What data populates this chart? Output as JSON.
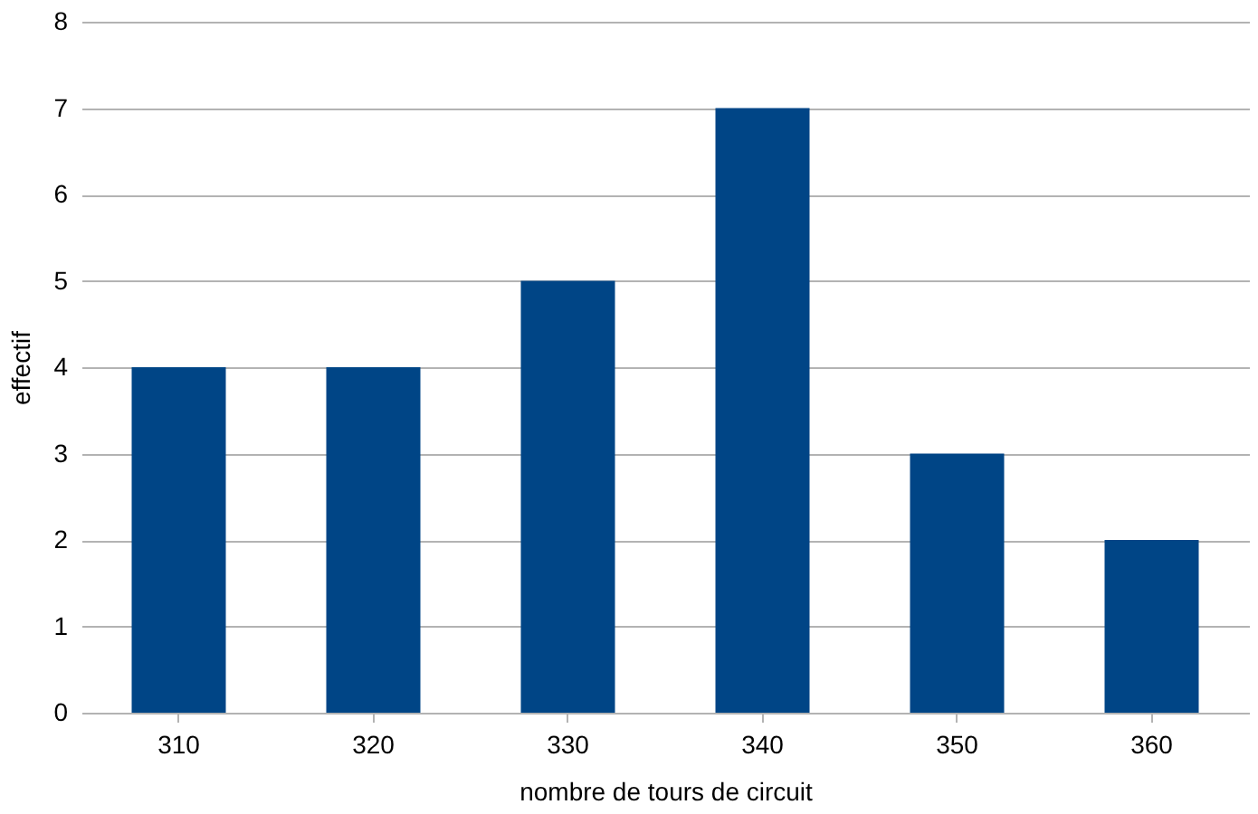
{
  "chart_data": {
    "type": "bar",
    "xlabel": "nombre de tours de circuit",
    "ylabel": "effectif",
    "categories": [
      "310",
      "320",
      "330",
      "340",
      "350",
      "360"
    ],
    "values": [
      4,
      4,
      5,
      7,
      3,
      2
    ],
    "color": "#004586",
    "ylim": [
      0,
      8
    ],
    "yticks": [
      0,
      1,
      2,
      3,
      4,
      5,
      6,
      7,
      8
    ],
    "grid": "y"
  }
}
